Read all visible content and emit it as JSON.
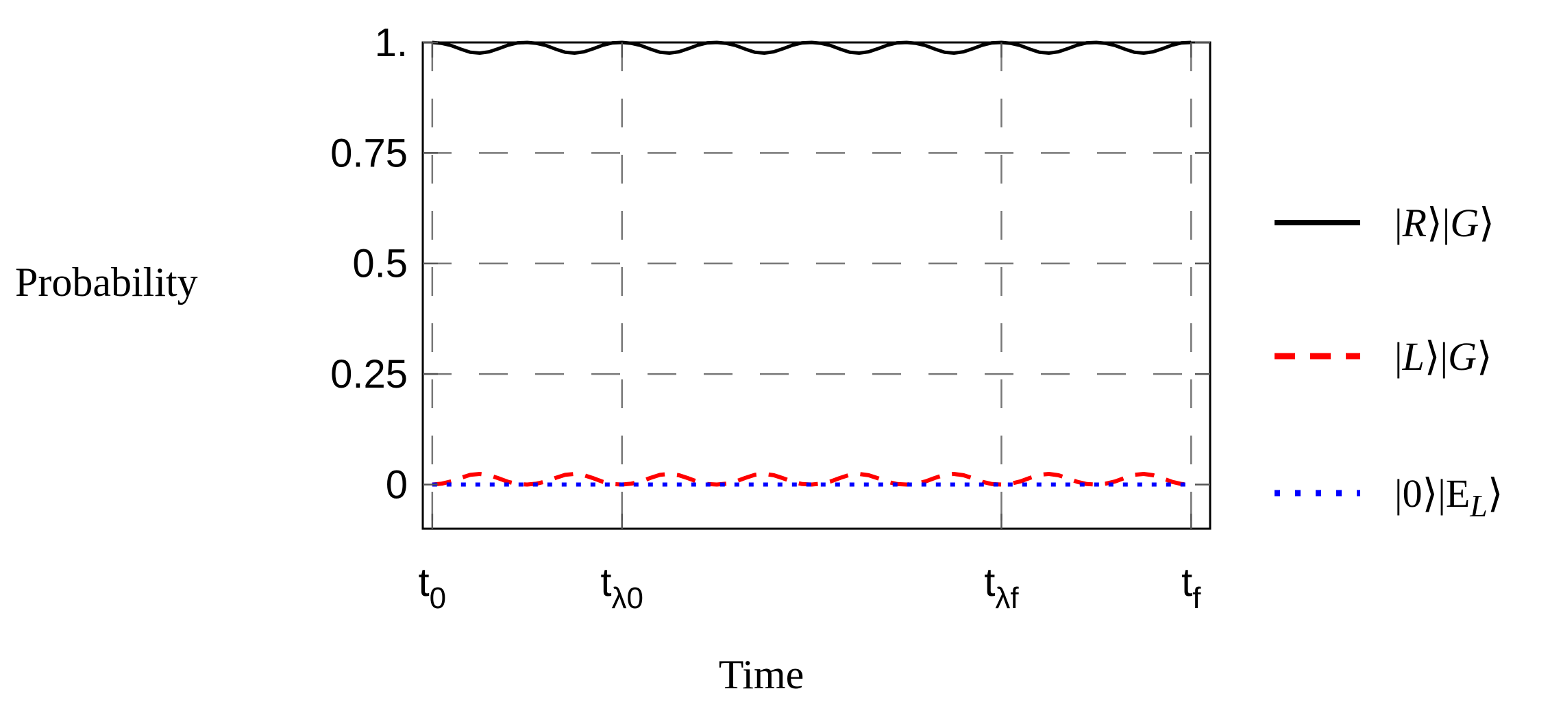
{
  "chart_data": {
    "type": "line",
    "xlabel": "Time",
    "ylabel": "Probability",
    "ylim": [
      -0.1,
      1.0
    ],
    "xlim": [
      -0.05,
      4.1
    ],
    "grid": true,
    "legend_position": "right",
    "y_ticks": [
      {
        "value": 1.0,
        "label": "1."
      },
      {
        "value": 0.75,
        "label": "0.75"
      },
      {
        "value": 0.5,
        "label": "0.5"
      },
      {
        "value": 0.25,
        "label": "0.25"
      },
      {
        "value": 0.0,
        "label": "0"
      }
    ],
    "x_ticks": [
      {
        "value": 0,
        "base": "t",
        "sub": "0"
      },
      {
        "value": 1,
        "base": "t",
        "sub": "λ0"
      },
      {
        "value": 3,
        "base": "t",
        "sub": "λf"
      },
      {
        "value": 4,
        "base": "t",
        "sub": "f"
      }
    ],
    "series": [
      {
        "name": "|R⟩|G⟩",
        "color": "#000000",
        "style": "solid",
        "x": [
          0,
          0.05,
          0.1,
          0.15,
          0.2,
          0.25,
          0.3,
          0.35,
          0.4,
          0.45,
          0.5,
          0.55,
          0.6,
          0.65,
          0.7,
          0.75,
          0.8,
          0.85,
          0.9,
          0.95,
          1.0,
          1.05,
          1.1,
          1.15,
          1.2,
          1.25,
          1.3,
          1.35,
          1.4,
          1.45,
          1.5,
          1.55,
          1.6,
          1.65,
          1.7,
          1.75,
          1.8,
          1.85,
          1.9,
          1.95,
          2.0,
          2.05,
          2.1,
          2.15,
          2.2,
          2.25,
          2.3,
          2.35,
          2.4,
          2.45,
          2.5,
          2.55,
          2.6,
          2.65,
          2.7,
          2.75,
          2.8,
          2.85,
          2.9,
          2.95,
          3.0,
          3.05,
          3.1,
          3.15,
          3.2,
          3.25,
          3.3,
          3.35,
          3.4,
          3.45,
          3.5,
          3.55,
          3.6,
          3.65,
          3.7,
          3.75,
          3.8,
          3.85,
          3.9,
          3.95,
          4.0
        ],
        "y": [
          1.0,
          0.998,
          0.993,
          0.985,
          0.978,
          0.976,
          0.979,
          0.986,
          0.994,
          0.999,
          1.0,
          0.998,
          0.993,
          0.985,
          0.978,
          0.976,
          0.979,
          0.986,
          0.994,
          0.999,
          1.0,
          0.998,
          0.993,
          0.985,
          0.978,
          0.976,
          0.979,
          0.986,
          0.994,
          0.999,
          1.0,
          0.998,
          0.993,
          0.985,
          0.978,
          0.976,
          0.979,
          0.986,
          0.994,
          0.999,
          1.0,
          0.998,
          0.993,
          0.985,
          0.978,
          0.976,
          0.979,
          0.986,
          0.994,
          0.999,
          1.0,
          0.998,
          0.993,
          0.985,
          0.978,
          0.976,
          0.979,
          0.986,
          0.994,
          0.999,
          1.0,
          0.998,
          0.993,
          0.985,
          0.978,
          0.976,
          0.979,
          0.986,
          0.994,
          0.999,
          1.0,
          0.998,
          0.993,
          0.985,
          0.978,
          0.976,
          0.979,
          0.986,
          0.994,
          0.999,
          1.0
        ]
      },
      {
        "name": "|L⟩|G⟩",
        "color": "#ff0000",
        "style": "dashed",
        "x": [
          0,
          0.05,
          0.1,
          0.15,
          0.2,
          0.25,
          0.3,
          0.35,
          0.4,
          0.45,
          0.5,
          0.55,
          0.6,
          0.65,
          0.7,
          0.75,
          0.8,
          0.85,
          0.9,
          0.95,
          1.0,
          1.05,
          1.1,
          1.15,
          1.2,
          1.25,
          1.3,
          1.35,
          1.4,
          1.45,
          1.5,
          1.55,
          1.6,
          1.65,
          1.7,
          1.75,
          1.8,
          1.85,
          1.9,
          1.95,
          2.0,
          2.05,
          2.1,
          2.15,
          2.2,
          2.25,
          2.3,
          2.35,
          2.4,
          2.45,
          2.5,
          2.55,
          2.6,
          2.65,
          2.7,
          2.75,
          2.8,
          2.85,
          2.9,
          2.95,
          3.0,
          3.05,
          3.1,
          3.15,
          3.2,
          3.25,
          3.3,
          3.35,
          3.4,
          3.45,
          3.5,
          3.55,
          3.6,
          3.65,
          3.7,
          3.75,
          3.8,
          3.85,
          3.9,
          3.95,
          4.0
        ],
        "y": [
          0.0,
          0.002,
          0.007,
          0.015,
          0.022,
          0.024,
          0.021,
          0.014,
          0.006,
          0.001,
          0.0,
          0.002,
          0.007,
          0.015,
          0.022,
          0.024,
          0.021,
          0.014,
          0.006,
          0.001,
          0.0,
          0.002,
          0.007,
          0.015,
          0.022,
          0.024,
          0.021,
          0.014,
          0.006,
          0.001,
          0.0,
          0.002,
          0.007,
          0.015,
          0.022,
          0.024,
          0.021,
          0.014,
          0.006,
          0.001,
          0.0,
          0.002,
          0.007,
          0.015,
          0.022,
          0.024,
          0.021,
          0.014,
          0.006,
          0.001,
          0.0,
          0.002,
          0.007,
          0.015,
          0.022,
          0.024,
          0.021,
          0.014,
          0.006,
          0.001,
          0.0,
          0.002,
          0.007,
          0.015,
          0.022,
          0.024,
          0.021,
          0.014,
          0.006,
          0.001,
          0.0,
          0.002,
          0.007,
          0.015,
          0.022,
          0.024,
          0.021,
          0.014,
          0.006,
          0.001,
          0.0
        ]
      },
      {
        "name": "|0⟩|E_L⟩",
        "color": "#0000ff",
        "style": "dotted",
        "x": [
          0,
          4.0
        ],
        "y": [
          0.0,
          0.0
        ]
      }
    ]
  },
  "legend": {
    "items": [
      {
        "pre": "|",
        "a": "R",
        "mid": "⟩|",
        "b": "G",
        "post": "⟩",
        "sub": ""
      },
      {
        "pre": "|",
        "a": "L",
        "mid": "⟩|",
        "b": "G",
        "post": "⟩",
        "sub": ""
      },
      {
        "pre": "|0⟩|E",
        "a": "",
        "mid": "",
        "b": "",
        "post": "⟩",
        "sub": "L"
      }
    ]
  }
}
